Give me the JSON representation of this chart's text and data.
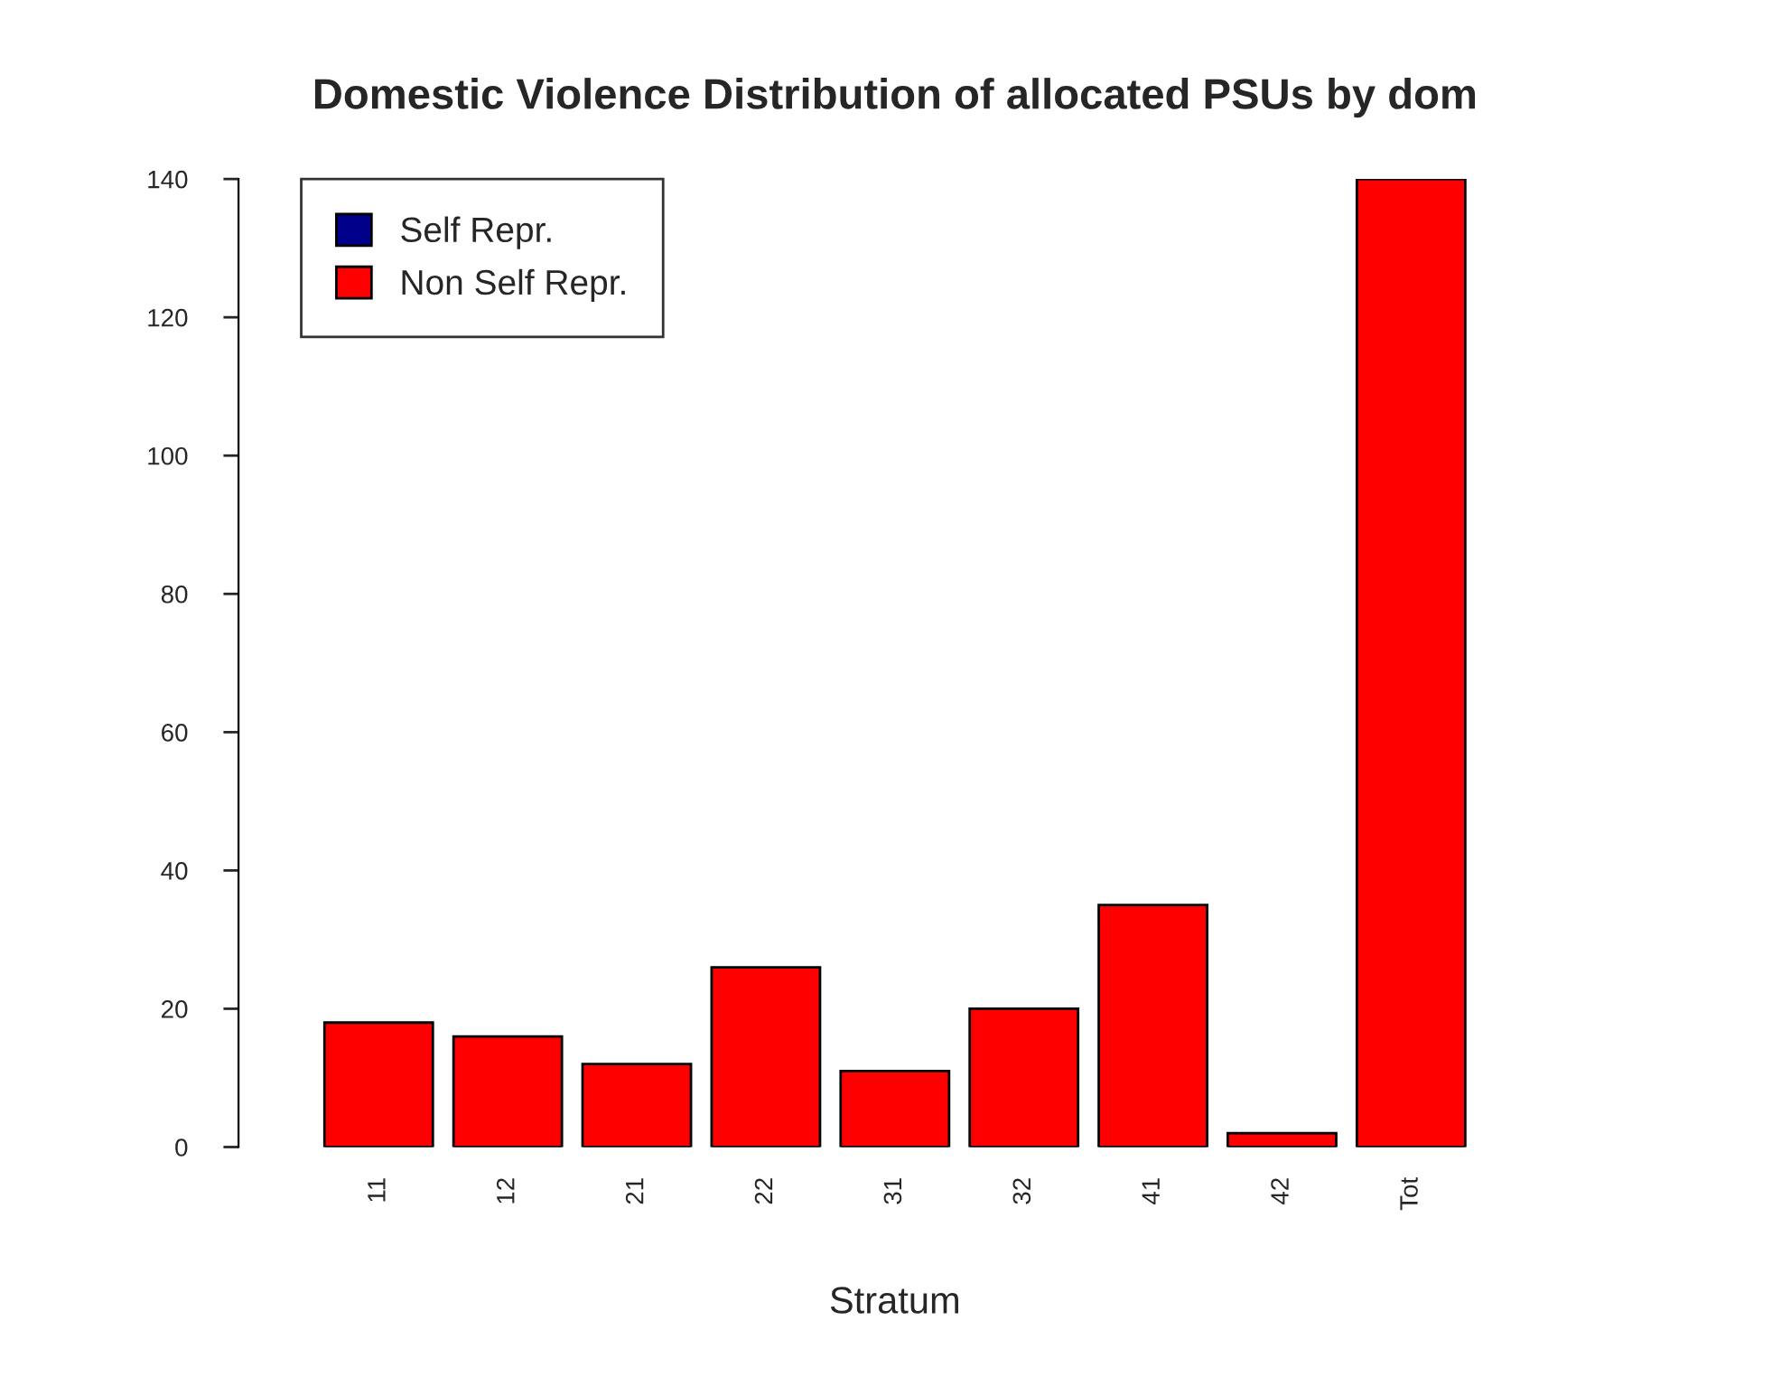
{
  "chart_data": {
    "type": "bar",
    "title": "Domestic Violence Distribution of allocated PSUs by dom",
    "xlabel": "Stratum",
    "categories": [
      "11",
      "12",
      "21",
      "22",
      "31",
      "32",
      "41",
      "42",
      "Tot"
    ],
    "stacked": true,
    "series": [
      {
        "name": "Self Repr.",
        "color": "#00008b",
        "values": [
          0,
          0,
          0,
          0,
          0,
          0,
          0,
          0,
          0
        ]
      },
      {
        "name": "Non Self Repr.",
        "color": "#ff0000",
        "values": [
          18,
          16,
          12,
          26,
          11,
          20,
          35,
          2,
          140
        ]
      }
    ],
    "ylim": [
      0,
      140
    ],
    "yticks": [
      0,
      20,
      40,
      60,
      80,
      100,
      120,
      140
    ],
    "grid": false,
    "legend": "top left"
  }
}
